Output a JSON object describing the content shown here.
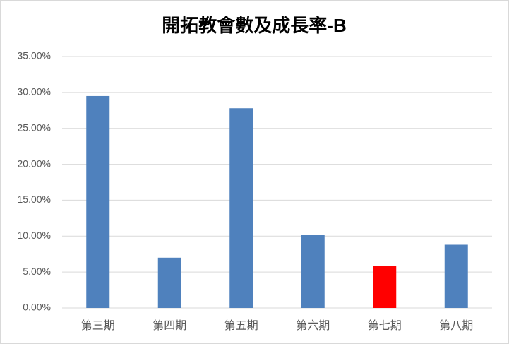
{
  "chart_data": {
    "type": "bar",
    "title": "開拓教會數及成長率-B",
    "categories": [
      "第三期",
      "第四期",
      "第五期",
      "第六期",
      "第七期",
      "第八期"
    ],
    "values": [
      29.5,
      7.0,
      27.8,
      10.2,
      5.8,
      8.8
    ],
    "colors": [
      "#4f81bd",
      "#4f81bd",
      "#4f81bd",
      "#4f81bd",
      "#ff0000",
      "#4f81bd"
    ],
    "ylim": [
      0,
      35
    ],
    "yticks": [
      {
        "value": 0,
        "label": "0.00%"
      },
      {
        "value": 5,
        "label": "5.00%"
      },
      {
        "value": 10,
        "label": "10.00%"
      },
      {
        "value": 15,
        "label": "15.00%"
      },
      {
        "value": 20,
        "label": "20.00%"
      },
      {
        "value": 25,
        "label": "25.00%"
      },
      {
        "value": 30,
        "label": "30.00%"
      },
      {
        "value": 35,
        "label": "35.00%"
      }
    ],
    "grid": true
  }
}
